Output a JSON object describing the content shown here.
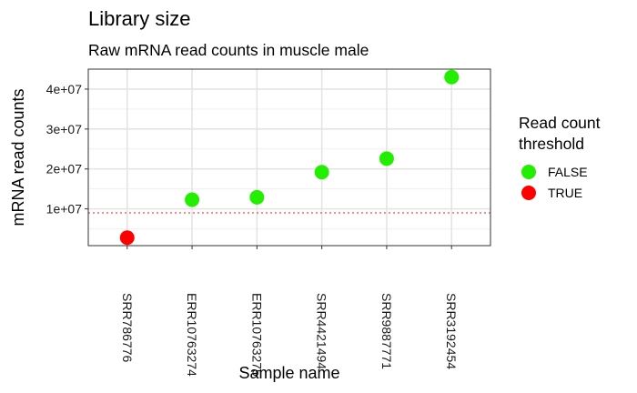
{
  "chart_data": {
    "type": "scatter",
    "title": "Library size",
    "subtitle": "Raw mRNA read counts in muscle male",
    "xlabel": "Sample name",
    "ylabel": "mRNA read counts",
    "categories": [
      "SRR786776",
      "ERR10763274",
      "ERR10763275",
      "SRR4421494",
      "SRR9887771",
      "SRR3192454"
    ],
    "values": [
      2800000,
      12300000,
      12900000,
      19200000,
      22600000,
      43000000
    ],
    "below_threshold": [
      true,
      false,
      false,
      false,
      false,
      false
    ],
    "threshold_value": 9000000,
    "y_ticks": [
      10000000,
      20000000,
      30000000,
      40000000
    ],
    "y_tick_labels": [
      "1e+07",
      "2e+07",
      "3e+07",
      "4e+07"
    ],
    "ylim": [
      800000,
      45000000
    ],
    "grid": true,
    "legend": {
      "title_lines": [
        "Read count",
        "threshold"
      ],
      "placement": "right",
      "items": [
        {
          "label": "FALSE",
          "color": "#22ee00"
        },
        {
          "label": "TRUE",
          "color": "#ff0000"
        }
      ]
    },
    "colors": {
      "false": "#22ee00",
      "true": "#ff0000",
      "threshold_line": "#ff4444"
    }
  }
}
